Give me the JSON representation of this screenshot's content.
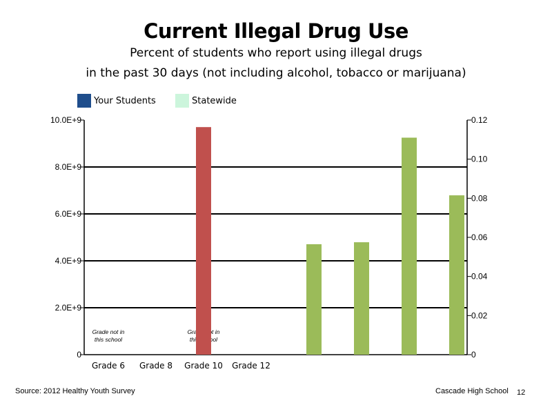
{
  "title": "Current Illegal Drug Use",
  "subtitle_line1": "Percent of students who report using illegal drugs",
  "subtitle_line2": "in the past 30 days (not including alcohol, tobacco or marijuana)",
  "legend": [
    {
      "label": "Your Students",
      "color": "#1f4e8c"
    },
    {
      "label": "Statewide",
      "color": "#ccf5dc"
    }
  ],
  "footer": {
    "source": "Source: 2012 Healthy Youth Survey",
    "school": "Cascade High School",
    "page": "12"
  },
  "chart_data": {
    "type": "bar",
    "categories": [
      "Grade 6",
      "Grade 8",
      "Grade 10",
      "Grade 12"
    ],
    "left_axis": {
      "ylim": [
        0,
        10000000000
      ],
      "tick_labels": [
        "0",
        "2.0E+9",
        "4.0E+9",
        "6.0E+9",
        "8.0E+9",
        "10.0E+9"
      ],
      "grid": true
    },
    "right_axis": {
      "ylim": [
        0,
        0.12
      ],
      "tick_labels": [
        "0",
        "0.02",
        "0.04",
        "0.06",
        "0.08",
        "0.10",
        "0.12"
      ]
    },
    "series": [
      {
        "axis": "left",
        "color": "#c0504d",
        "group": "main",
        "values": [
          null,
          null,
          9700000000,
          null
        ]
      },
      {
        "axis": "right",
        "color": "#9bbb59",
        "group": "extra",
        "values": [
          0.0565,
          0.0575,
          0.111,
          0.0815
        ]
      }
    ],
    "annotations": [
      {
        "category": "Grade 6",
        "lines": [
          "Grade not in",
          "this school"
        ]
      },
      {
        "category": "Grade 10",
        "lines": [
          "Grade not in",
          "this school"
        ]
      }
    ]
  }
}
